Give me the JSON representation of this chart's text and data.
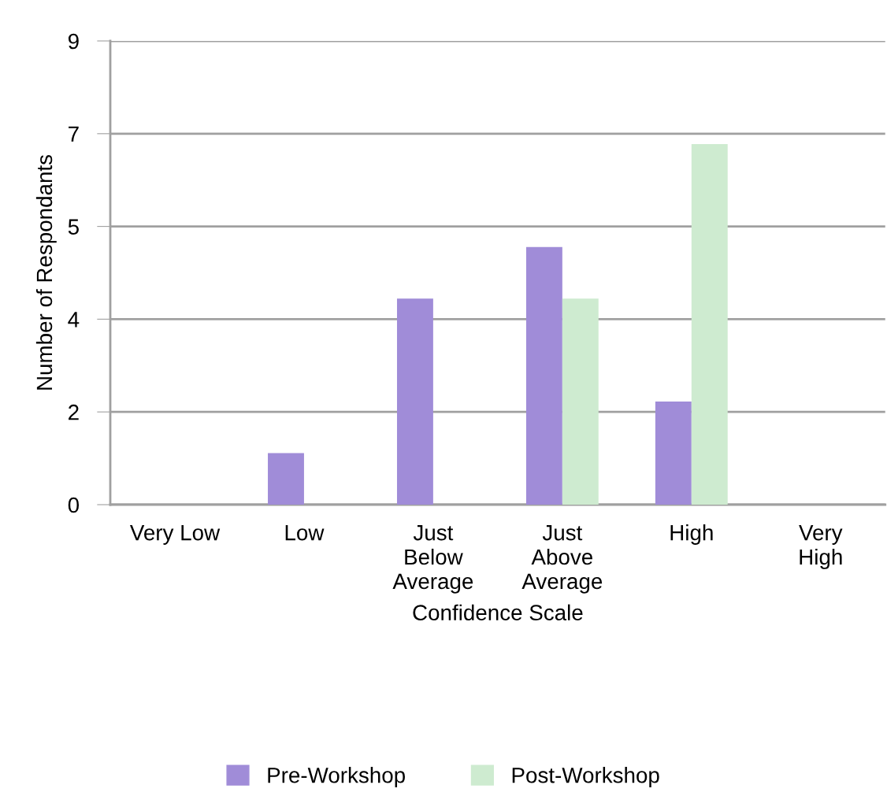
{
  "chart_data": {
    "type": "bar",
    "xlabel": "Confidence Scale",
    "ylabel": "Number of Respondants",
    "categories": [
      "Very Low",
      "Low",
      "Just\nBelow\nAverage",
      "Just\nAbove\nAverage",
      "High",
      "Very\nHigh"
    ],
    "series": [
      {
        "name": "Pre-Workshop",
        "color": "#a08cd8",
        "values": [
          0,
          1,
          4,
          5,
          2,
          0
        ]
      },
      {
        "name": "Post-Workshop",
        "color": "#ceebd0",
        "values": [
          0,
          0,
          0,
          4,
          7,
          0
        ]
      }
    ],
    "ylim": [
      0,
      9
    ],
    "yticks": [
      0,
      {
        "value": 1.8,
        "label": "2"
      },
      {
        "value": 3.6,
        "label": "4"
      },
      {
        "value": 5.4,
        "label": "5"
      },
      {
        "value": 7.2,
        "label": "7"
      },
      9
    ],
    "grid": "y",
    "legend": "bottom"
  }
}
